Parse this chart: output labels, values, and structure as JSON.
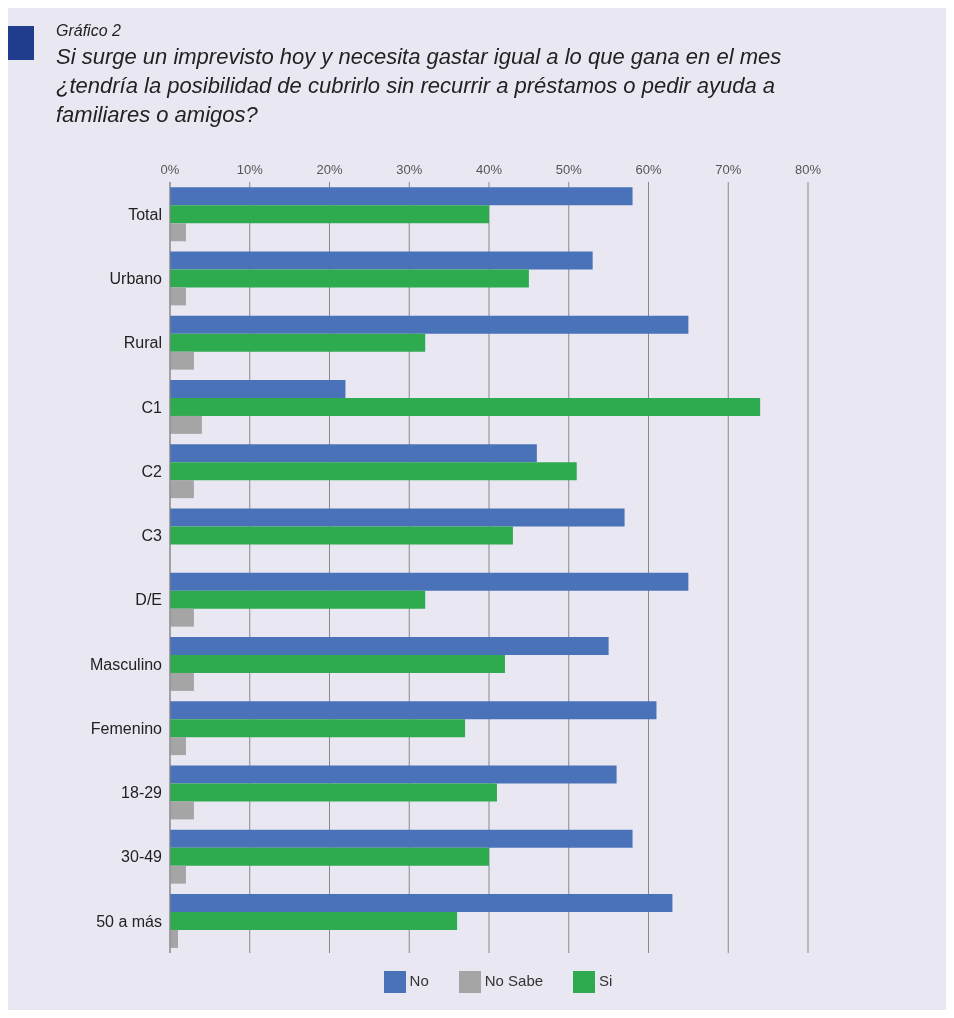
{
  "chart_data": {
    "type": "bar",
    "orientation": "horizontal",
    "title": "Gráfico 2",
    "subtitle": "Si surge un imprevisto hoy y necesita gastar igual a lo que gana en el mes ¿tendría la posibilidad de cubrirlo sin recurrir a préstamos o pedir ayuda a familiares o amigos?",
    "categories": [
      "Total",
      "Urbano",
      "Rural",
      "C1",
      "C2",
      "C3",
      "D/E",
      "Masculino",
      "Femenino",
      "18-29",
      "30-49",
      "50 a más"
    ],
    "series": [
      {
        "name": "No",
        "color": "#4a72b8",
        "values": [
          58,
          53,
          65,
          22,
          46,
          57,
          65,
          55,
          61,
          56,
          58,
          63
        ]
      },
      {
        "name": "Si",
        "color": "#2eaa4f",
        "values": [
          40,
          45,
          32,
          74,
          51,
          43,
          32,
          42,
          37,
          41,
          40,
          36
        ]
      },
      {
        "name": "No Sabe",
        "color": "#a5a5a5",
        "values": [
          2,
          2,
          3,
          4,
          3,
          null,
          3,
          3,
          2,
          3,
          2,
          1
        ]
      }
    ],
    "xlim": [
      0,
      80
    ],
    "xticks": [
      {
        "value": 0,
        "label": "0%"
      },
      {
        "value": 10,
        "label": "10%"
      },
      {
        "value": 20,
        "label": "20%"
      },
      {
        "value": 30,
        "label": "30%"
      },
      {
        "value": 40,
        "label": "40%"
      },
      {
        "value": 50,
        "label": "50%"
      },
      {
        "value": 60,
        "label": "60%"
      },
      {
        "value": 70,
        "label": "70%"
      },
      {
        "value": 80,
        "label": "80%"
      }
    ],
    "grid": "x",
    "legend": "bottom"
  }
}
